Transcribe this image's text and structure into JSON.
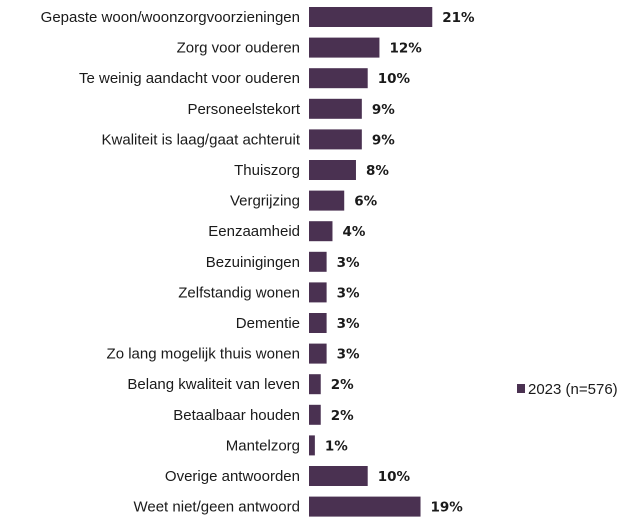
{
  "chart_data": {
    "type": "bar",
    "orientation": "horizontal",
    "categories": [
      "Gepaste woon/woonzorgvoorzieningen",
      "Zorg voor ouderen",
      "Te weinig aandacht voor ouderen",
      "Personeelstekort",
      "Kwaliteit is laag/gaat achteruit",
      "Thuiszorg",
      "Vergrijzing",
      "Eenzaamheid",
      "Bezuinigingen",
      "Zelfstandig wonen",
      "Dementie",
      "Zo lang mogelijk thuis wonen",
      "Belang kwaliteit van leven",
      "Betaalbaar houden",
      "Mantelzorg",
      "Overige antwoorden",
      "Weet niet/geen antwoord"
    ],
    "series": [
      {
        "name": "2023 (n=576)",
        "values": [
          21,
          12,
          10,
          9,
          9,
          8,
          6,
          4,
          3,
          3,
          3,
          3,
          2,
          2,
          1,
          10,
          19
        ],
        "value_labels": [
          "21%",
          "12%",
          "10%",
          "9%",
          "9%",
          "8%",
          "6%",
          "4%",
          "3%",
          "3%",
          "3%",
          "3%",
          "2%",
          "2%",
          "1%",
          "10%",
          "19%"
        ]
      }
    ],
    "xlim": [
      0,
      21
    ],
    "grid": false,
    "legend_position": "right",
    "bar_color": "#4a3151"
  }
}
